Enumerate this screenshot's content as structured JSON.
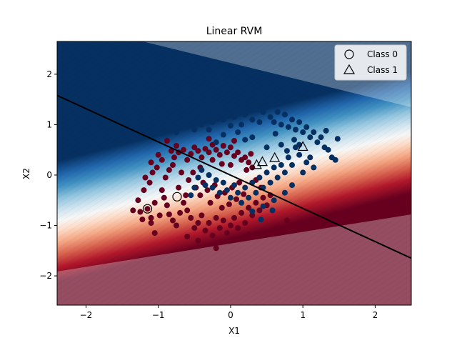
{
  "chart_data": {
    "type": "scatter",
    "title": "Linear RVM",
    "xlabel": "X1",
    "ylabel": "X2",
    "xlim": [
      -2.4,
      2.5
    ],
    "ylim": [
      -2.58,
      2.65
    ],
    "xticks": [
      -2,
      -1,
      0,
      1,
      2
    ],
    "yticks": [
      -2,
      -1,
      0,
      1,
      2
    ],
    "grid": false,
    "legend_position": "top-right",
    "colors": {
      "class0": "#67001f",
      "class1": "#053061",
      "boundary": "#000000"
    },
    "decision_boundary": {
      "x": [
        -2.4,
        2.5
      ],
      "y": [
        1.58,
        -1.65
      ]
    },
    "legend": [
      {
        "label": "Class 0",
        "marker": "circle"
      },
      {
        "label": "Class 1",
        "marker": "triangle"
      }
    ],
    "relevance_vectors": [
      {
        "x": -1.15,
        "y": -0.67,
        "class": 0
      },
      {
        "x": -0.74,
        "y": -0.43,
        "class": 0
      },
      {
        "x": 0.36,
        "y": 0.2,
        "class": 1
      },
      {
        "x": 0.44,
        "y": 0.26,
        "class": 1
      },
      {
        "x": 0.61,
        "y": 0.34,
        "class": 1
      },
      {
        "x": 1.0,
        "y": 0.56,
        "class": 1
      }
    ],
    "series": [
      {
        "name": "Class 0",
        "points": [
          [
            -1.15,
            -0.67
          ],
          [
            -1.35,
            -0.7
          ],
          [
            -1.25,
            -0.73
          ],
          [
            -1.28,
            -0.5
          ],
          [
            -1.1,
            -0.85
          ],
          [
            -1.05,
            -0.55
          ],
          [
            -1.2,
            -0.3
          ],
          [
            -1.12,
            -0.15
          ],
          [
            -1.18,
            -0.05
          ],
          [
            -1.08,
            0.05
          ],
          [
            -1.02,
            0.15
          ],
          [
            -1.1,
            0.25
          ],
          [
            -0.95,
            0.3
          ],
          [
            -1.0,
            0.4
          ],
          [
            -0.9,
            -0.05
          ],
          [
            -0.85,
            0.1
          ],
          [
            -0.8,
            0.2
          ],
          [
            -0.78,
            0.35
          ],
          [
            -0.72,
            0.45
          ],
          [
            -0.65,
            0.5
          ],
          [
            -0.6,
            0.3
          ],
          [
            -0.55,
            0.42
          ],
          [
            -0.5,
            0.55
          ],
          [
            -0.45,
            0.48
          ],
          [
            -0.4,
            0.35
          ],
          [
            -0.35,
            0.52
          ],
          [
            -0.3,
            0.45
          ],
          [
            -0.25,
            0.6
          ],
          [
            -0.2,
            0.5
          ],
          [
            -0.15,
            0.4
          ],
          [
            -0.1,
            0.58
          ],
          [
            -0.05,
            0.45
          ],
          [
            0.0,
            0.55
          ],
          [
            0.05,
            0.38
          ],
          [
            0.1,
            0.45
          ],
          [
            0.15,
            0.3
          ],
          [
            0.2,
            0.35
          ],
          [
            0.25,
            0.25
          ],
          [
            0.3,
            0.15
          ],
          [
            0.28,
            0.42
          ],
          [
            -0.95,
            -0.3
          ],
          [
            -0.92,
            -0.45
          ],
          [
            -0.88,
            -0.6
          ],
          [
            -0.85,
            -0.78
          ],
          [
            -0.8,
            -0.9
          ],
          [
            -0.75,
            -1.0
          ],
          [
            -0.7,
            -0.75
          ],
          [
            -0.65,
            -0.55
          ],
          [
            -0.6,
            -0.7
          ],
          [
            -0.55,
            -0.85
          ],
          [
            -0.5,
            -1.05
          ],
          [
            -0.45,
            -0.95
          ],
          [
            -0.4,
            -0.8
          ],
          [
            -0.35,
            -1.1
          ],
          [
            -0.3,
            -0.95
          ],
          [
            -0.25,
            -1.2
          ],
          [
            -0.2,
            -0.85
          ],
          [
            -0.15,
            -1.05
          ],
          [
            -0.1,
            -0.9
          ],
          [
            -0.05,
            -1.15
          ],
          [
            0.0,
            -1.0
          ],
          [
            0.05,
            -0.85
          ],
          [
            0.1,
            -1.05
          ],
          [
            0.15,
            -0.75
          ],
          [
            0.2,
            -0.95
          ],
          [
            0.25,
            -0.65
          ],
          [
            0.3,
            -0.8
          ],
          [
            0.35,
            -0.55
          ],
          [
            0.4,
            -0.7
          ],
          [
            0.45,
            -0.45
          ],
          [
            0.5,
            -0.6
          ],
          [
            0.55,
            -0.4
          ],
          [
            -1.1,
            -0.95
          ],
          [
            -1.05,
            -1.15
          ],
          [
            -0.98,
            -0.8
          ],
          [
            -0.2,
            -1.45
          ],
          [
            -0.45,
            -1.3
          ],
          [
            0.25,
            -1.18
          ],
          [
            0.78,
            -0.9
          ],
          [
            -0.6,
            -1.22
          ],
          [
            -0.58,
            -0.1
          ],
          [
            -0.52,
            0.05
          ],
          [
            -0.48,
            -0.25
          ],
          [
            -0.42,
            -0.4
          ],
          [
            -0.38,
            -0.15
          ],
          [
            -0.32,
            -0.3
          ],
          [
            -0.28,
            -0.55
          ],
          [
            -0.22,
            -0.2
          ],
          [
            -0.18,
            -0.42
          ],
          [
            -0.12,
            -0.65
          ],
          [
            -0.08,
            -0.35
          ],
          [
            -0.02,
            -0.58
          ],
          [
            0.02,
            -0.25
          ],
          [
            0.08,
            -0.48
          ],
          [
            0.12,
            -0.15
          ],
          [
            0.18,
            -0.38
          ],
          [
            -0.68,
            0.05
          ],
          [
            -0.72,
            -0.25
          ],
          [
            -0.62,
            -0.4
          ],
          [
            -0.75,
            0.58
          ],
          [
            -0.82,
            0.48
          ],
          [
            -1.22,
            -0.88
          ],
          [
            -0.88,
            0.68
          ],
          [
            -0.3,
            0.72
          ],
          [
            0.05,
            0.68
          ],
          [
            -0.12,
            0.22
          ],
          [
            -0.25,
            0.3
          ],
          [
            -0.42,
            0.15
          ],
          [
            0.0,
            0.2
          ],
          [
            0.22,
            0.1
          ],
          [
            0.35,
            -0.1
          ],
          [
            0.42,
            -0.25
          ]
        ]
      },
      {
        "name": "Class 1",
        "points": [
          [
            -0.65,
            1.2
          ],
          [
            -0.55,
            1.1
          ],
          [
            -0.45,
            1.25
          ],
          [
            -0.4,
            1.0
          ],
          [
            -0.35,
            1.15
          ],
          [
            -0.3,
            1.3
          ],
          [
            -0.25,
            1.05
          ],
          [
            -0.2,
            1.2
          ],
          [
            -0.15,
            1.35
          ],
          [
            -0.1,
            1.1
          ],
          [
            -0.05,
            1.25
          ],
          [
            0.0,
            1.4
          ],
          [
            0.05,
            1.15
          ],
          [
            0.1,
            1.3
          ],
          [
            0.15,
            1.0
          ],
          [
            0.2,
            1.2
          ],
          [
            0.25,
            1.45
          ],
          [
            0.3,
            1.1
          ],
          [
            0.35,
            1.3
          ],
          [
            0.4,
            1.05
          ],
          [
            0.45,
            1.25
          ],
          [
            0.5,
            1.35
          ],
          [
            0.55,
            1.15
          ],
          [
            0.6,
            1.05
          ],
          [
            0.65,
            1.25
          ],
          [
            0.7,
            1.0
          ],
          [
            0.75,
            1.2
          ],
          [
            0.8,
            0.95
          ],
          [
            0.85,
            1.1
          ],
          [
            0.9,
            0.9
          ],
          [
            0.95,
            1.05
          ],
          [
            1.0,
            0.85
          ],
          [
            1.05,
            0.95
          ],
          [
            1.1,
            0.75
          ],
          [
            1.15,
            0.85
          ],
          [
            1.2,
            0.65
          ],
          [
            1.25,
            0.75
          ],
          [
            1.3,
            0.55
          ],
          [
            1.35,
            0.5
          ],
          [
            1.4,
            0.35
          ],
          [
            1.45,
            0.3
          ],
          [
            1.48,
            0.72
          ],
          [
            1.32,
            0.88
          ],
          [
            0.58,
            1.68
          ],
          [
            0.4,
            1.55
          ],
          [
            -0.62,
            1.35
          ],
          [
            -0.75,
            0.85
          ],
          [
            -0.5,
            0.9
          ],
          [
            -0.8,
            1.15
          ],
          [
            1.15,
            0.15
          ],
          [
            1.05,
            0.25
          ],
          [
            0.95,
            0.4
          ],
          [
            0.9,
            0.55
          ],
          [
            0.85,
            0.2
          ],
          [
            0.8,
            0.35
          ],
          [
            0.75,
            0.05
          ],
          [
            0.7,
            0.2
          ],
          [
            0.65,
            -0.05
          ],
          [
            0.6,
            0.15
          ],
          [
            0.55,
            -0.15
          ],
          [
            0.5,
            0.05
          ],
          [
            0.45,
            -0.25
          ],
          [
            0.4,
            -0.05
          ],
          [
            0.35,
            -0.35
          ],
          [
            0.3,
            -0.15
          ],
          [
            0.25,
            -0.45
          ],
          [
            0.2,
            -0.25
          ],
          [
            0.15,
            -0.55
          ],
          [
            0.1,
            -0.35
          ],
          [
            0.05,
            -0.2
          ],
          [
            0.0,
            -0.45
          ],
          [
            -0.05,
            -0.3
          ],
          [
            -0.1,
            -0.15
          ],
          [
            -0.15,
            -0.35
          ],
          [
            -0.2,
            -0.1
          ],
          [
            -0.25,
            -0.25
          ],
          [
            -0.3,
            0.0
          ],
          [
            -0.35,
            -0.2
          ],
          [
            -0.4,
            0.1
          ],
          [
            -0.45,
            -0.05
          ],
          [
            -0.5,
            -0.25
          ],
          [
            -0.55,
            -0.4
          ],
          [
            0.58,
            -0.7
          ],
          [
            0.42,
            -0.88
          ],
          [
            0.3,
            -0.72
          ],
          [
            0.45,
            -0.62
          ],
          [
            0.6,
            -0.5
          ],
          [
            0.75,
            -0.35
          ],
          [
            0.85,
            -0.2
          ],
          [
            1.0,
            0.05
          ],
          [
            1.1,
            0.35
          ],
          [
            0.88,
            0.7
          ],
          [
            0.7,
            0.6
          ],
          [
            0.5,
            0.55
          ],
          [
            0.3,
            0.75
          ],
          [
            0.1,
            0.85
          ],
          [
            -0.1,
            0.8
          ],
          [
            -0.3,
            0.9
          ],
          [
            -0.2,
            0.65
          ],
          [
            0.0,
            0.98
          ],
          [
            0.2,
            0.7
          ],
          [
            0.62,
            0.82
          ],
          [
            0.78,
            0.48
          ],
          [
            0.95,
            0.6
          ]
        ]
      }
    ]
  }
}
